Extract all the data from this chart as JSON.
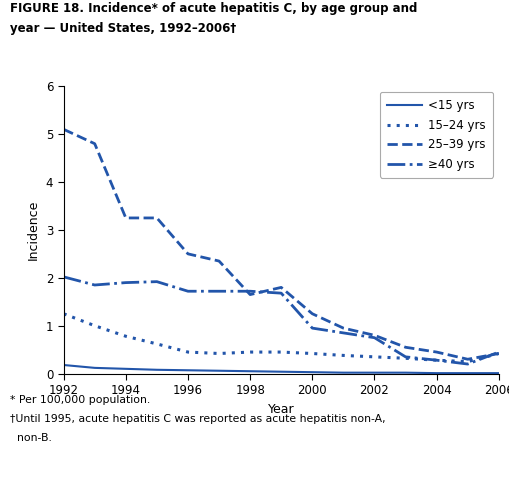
{
  "title_line1": "FIGURE 18. Incidence* of acute hepatitis C, by age group and",
  "title_line2": "year — United States, 1992–2006†",
  "xlabel": "Year",
  "ylabel": "Incidence",
  "footnote1": "* Per 100,000 population.",
  "footnote2": "†Until 1995, acute hepatitis C was reported as acute hepatitis non-A,",
  "footnote3": "  non-B.",
  "years": [
    1992,
    1993,
    1994,
    1995,
    1996,
    1997,
    1998,
    1999,
    2000,
    2001,
    2002,
    2003,
    2004,
    2005,
    2006
  ],
  "lt15": [
    0.18,
    0.12,
    0.1,
    0.08,
    0.07,
    0.06,
    0.05,
    0.04,
    0.03,
    0.02,
    0.02,
    0.02,
    0.01,
    0.01,
    0.01
  ],
  "age1524": [
    1.25,
    1.0,
    0.78,
    0.62,
    0.45,
    0.42,
    0.45,
    0.45,
    0.42,
    0.38,
    0.35,
    0.32,
    0.28,
    0.25,
    0.42
  ],
  "age2539": [
    5.1,
    4.8,
    3.25,
    3.25,
    2.5,
    2.35,
    1.65,
    1.8,
    1.25,
    0.95,
    0.8,
    0.55,
    0.45,
    0.3,
    0.42
  ],
  "ge40": [
    2.02,
    1.85,
    1.9,
    1.92,
    1.72,
    1.72,
    1.72,
    1.68,
    0.95,
    0.85,
    0.75,
    0.35,
    0.28,
    0.2,
    0.45
  ],
  "line_color": "#2255aa",
  "ylim": [
    0,
    6
  ],
  "yticks": [
    0,
    1,
    2,
    3,
    4,
    5,
    6
  ],
  "xticks": [
    1992,
    1994,
    1996,
    1998,
    2000,
    2002,
    2004,
    2006
  ],
  "legend_labels": [
    "<15 yrs",
    "15–24 yrs",
    "25–39 yrs",
    "≥40 yrs"
  ],
  "legend_styles": [
    "-",
    ":",
    "--",
    "-."
  ],
  "legend_lw": [
    1.5,
    2.0,
    2.0,
    2.0
  ]
}
